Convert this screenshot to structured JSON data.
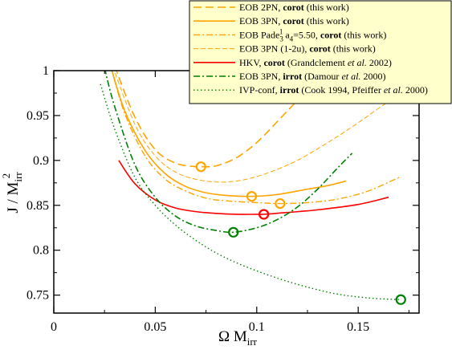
{
  "chart_data": {
    "type": "line",
    "xlabel": "Ω M",
    "xlabel_sub": "irr",
    "ylabel": "J / M",
    "ylabel_sub": "irr",
    "ylabel_sup": "2",
    "xlim": [
      0,
      0.18
    ],
    "ylim": [
      0.73,
      1.0
    ],
    "xticks": [
      0,
      0.05,
      0.1,
      0.15
    ],
    "xtick_labels": [
      "0",
      "0.05",
      "0.1",
      "0.15"
    ],
    "yticks": [
      0.75,
      0.8,
      0.85,
      0.9,
      0.95,
      1.0
    ],
    "ytick_labels": [
      "0.75",
      "0.8",
      "0.85",
      "0.9",
      "0.95",
      "1"
    ],
    "grid": false,
    "legend_position": "top-right",
    "series": [
      {
        "legend_parts": [
          {
            "text": "EOB 2PN, ",
            "weight": "normal"
          },
          {
            "text": "corot",
            "weight": "bold"
          },
          {
            "text": "  (this work)",
            "weight": "normal"
          }
        ],
        "color": "#FFA500",
        "dash": "long-dash",
        "width": 1.6,
        "x": [
          0.03,
          0.04,
          0.05,
          0.06,
          0.07,
          0.0725,
          0.08,
          0.09,
          0.1,
          0.11,
          0.12,
          0.13,
          0.14
        ],
        "y": [
          1.005,
          0.948,
          0.912,
          0.897,
          0.893,
          0.893,
          0.894,
          0.903,
          0.92,
          0.943,
          0.967,
          0.992,
          1.0
        ],
        "markers": [
          {
            "x": 0.0725,
            "y": 0.893
          }
        ]
      },
      {
        "legend_parts": [
          {
            "text": "EOB 3PN, ",
            "weight": "normal"
          },
          {
            "text": "corot",
            "weight": "bold"
          },
          {
            "text": "  (this work)",
            "weight": "normal"
          }
        ],
        "color": "#FFA500",
        "dash": "solid",
        "width": 1.6,
        "x": [
          0.028,
          0.035,
          0.045,
          0.055,
          0.065,
          0.075,
          0.085,
          0.0975,
          0.11,
          0.125,
          0.135,
          0.144
        ],
        "y": [
          1.005,
          0.955,
          0.911,
          0.885,
          0.871,
          0.864,
          0.861,
          0.86,
          0.862,
          0.868,
          0.872,
          0.877
        ],
        "markers": [
          {
            "x": 0.0975,
            "y": 0.86
          }
        ]
      },
      {
        "legend_parts": [
          {
            "text": "EOB Pade",
            "weight": "normal"
          },
          {
            "text": "3",
            "weight": "normal",
            "script": "sub"
          },
          {
            "text": "1",
            "weight": "normal",
            "script": "sup"
          },
          {
            "text": "  a",
            "weight": "normal"
          },
          {
            "text": "4",
            "weight": "normal",
            "script": "sub"
          },
          {
            "text": "=5.50,  ",
            "weight": "normal"
          },
          {
            "text": "corot",
            "weight": "bold"
          },
          {
            "text": "  (this work)",
            "weight": "normal"
          }
        ],
        "color": "#FFA500",
        "dash": "dash-dot",
        "width": 1.4,
        "x": [
          0.028,
          0.035,
          0.045,
          0.055,
          0.065,
          0.075,
          0.085,
          0.1,
          0.1115,
          0.125,
          0.14,
          0.155,
          0.171
        ],
        "y": [
          1.005,
          0.952,
          0.905,
          0.879,
          0.866,
          0.858,
          0.855,
          0.853,
          0.852,
          0.853,
          0.857,
          0.866,
          0.882
        ],
        "markers": [
          {
            "x": 0.1115,
            "y": 0.852
          }
        ]
      },
      {
        "legend_parts": [
          {
            "text": "EOB 3PN (1-2u), ",
            "weight": "normal"
          },
          {
            "text": "corot",
            "weight": "bold"
          },
          {
            "text": " (this work)",
            "weight": "normal"
          }
        ],
        "color": "#FFA500",
        "dash": "dash",
        "width": 1.0,
        "x": [
          0.029,
          0.04,
          0.05,
          0.06,
          0.07,
          0.08,
          0.09,
          0.1,
          0.11,
          0.12,
          0.13,
          0.14,
          0.15,
          0.16,
          0.171
        ],
        "y": [
          1.005,
          0.94,
          0.905,
          0.887,
          0.879,
          0.876,
          0.877,
          0.882,
          0.89,
          0.9,
          0.913,
          0.927,
          0.942,
          0.958,
          0.975
        ],
        "markers": []
      },
      {
        "legend_parts": [
          {
            "text": "HKV, ",
            "weight": "normal"
          },
          {
            "text": "corot",
            "weight": "bold"
          },
          {
            "text": "  (Grandclement ",
            "weight": "normal"
          },
          {
            "text": "et al.",
            "weight": "normal",
            "style": "italic"
          },
          {
            "text": " 2002)",
            "weight": "normal"
          }
        ],
        "color": "#FF0000",
        "dash": "solid",
        "width": 1.6,
        "x": [
          0.032,
          0.04,
          0.05,
          0.06,
          0.07,
          0.08,
          0.09,
          0.1,
          0.1035,
          0.115,
          0.13,
          0.15,
          0.165
        ],
        "y": [
          0.9,
          0.874,
          0.856,
          0.847,
          0.843,
          0.841,
          0.84,
          0.84,
          0.84,
          0.842,
          0.845,
          0.851,
          0.859
        ],
        "markers": [
          {
            "x": 0.1035,
            "y": 0.84
          }
        ]
      },
      {
        "legend_parts": [
          {
            "text": "EOB 3PN, ",
            "weight": "normal"
          },
          {
            "text": "irrot",
            "weight": "bold"
          },
          {
            "text": "  (Damour ",
            "weight": "normal"
          },
          {
            "text": "et al.",
            "weight": "normal",
            "style": "italic"
          },
          {
            "text": " 2000)",
            "weight": "normal"
          }
        ],
        "color": "#008000",
        "dash": "dash-dot",
        "width": 1.6,
        "x": [
          0.025,
          0.03,
          0.04,
          0.05,
          0.06,
          0.07,
          0.08,
          0.0885,
          0.1,
          0.11,
          0.12,
          0.13,
          0.14,
          0.147
        ],
        "y": [
          1.003,
          0.96,
          0.895,
          0.859,
          0.838,
          0.827,
          0.822,
          0.82,
          0.825,
          0.834,
          0.848,
          0.868,
          0.892,
          0.908
        ],
        "markers": [
          {
            "x": 0.0885,
            "y": 0.82
          }
        ]
      },
      {
        "legend_parts": [
          {
            "text": "IVP-conf, ",
            "weight": "normal"
          },
          {
            "text": "irrot",
            "weight": "bold"
          },
          {
            "text": " (Cook 1994, Pfeiffer ",
            "weight": "normal"
          },
          {
            "text": "et al.",
            "weight": "normal",
            "style": "italic"
          },
          {
            "text": " 2000)",
            "weight": "normal"
          }
        ],
        "color": "#008000",
        "dash": "dot",
        "width": 1.4,
        "x": [
          0.023,
          0.03,
          0.04,
          0.05,
          0.06,
          0.07,
          0.08,
          0.09,
          0.1,
          0.11,
          0.12,
          0.13,
          0.14,
          0.15,
          0.16,
          0.171
        ],
        "y": [
          0.985,
          0.935,
          0.881,
          0.85,
          0.828,
          0.811,
          0.797,
          0.786,
          0.777,
          0.769,
          0.762,
          0.756,
          0.751,
          0.748,
          0.746,
          0.745
        ],
        "markers": [
          {
            "x": 0.171,
            "y": 0.745
          }
        ]
      }
    ]
  }
}
